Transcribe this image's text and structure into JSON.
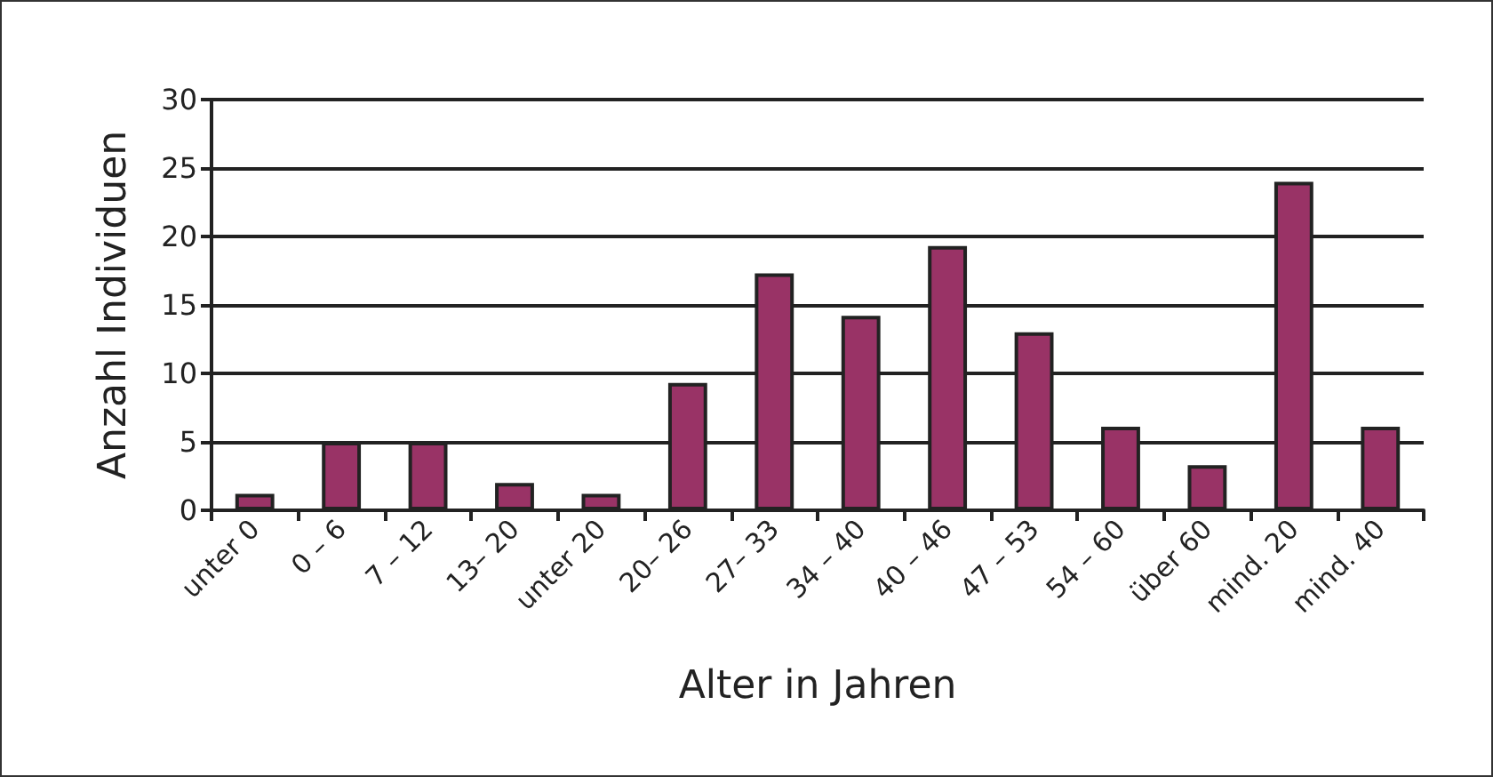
{
  "chart_data": {
    "type": "bar",
    "categories": [
      "unter 0",
      "0 – 6",
      "7 – 12",
      "13– 20",
      "unter 20",
      "20– 26",
      "27– 33",
      "34 – 40",
      "40 – 46",
      "47 – 53",
      "54 – 60",
      "über 60",
      "mind. 20",
      "mind. 40"
    ],
    "values": [
      1.2,
      5,
      5,
      2,
      1.2,
      9.3,
      17.3,
      14.2,
      19.3,
      13,
      6.1,
      3.3,
      24,
      6.1
    ],
    "color": "#993366",
    "xlabel": "Alter in Jahren",
    "ylabel": "Anzahl Individuen",
    "ylim": [
      0,
      30
    ],
    "yticks": [
      0,
      5,
      10,
      15,
      20,
      25,
      30
    ],
    "grid": "y"
  }
}
